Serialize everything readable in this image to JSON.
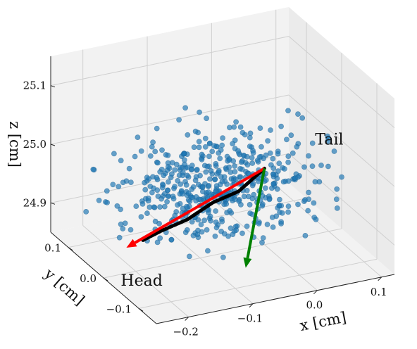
{
  "chart_data": {
    "type": "scatter",
    "projection": "3d",
    "grid": true,
    "axes": {
      "x": {
        "label": "x [cm]",
        "ticks": [
          {
            "v": -0.2,
            "label": "−0.2"
          },
          {
            "v": -0.1,
            "label": "−0.1"
          },
          {
            "v": 0.0,
            "label": "0.0"
          },
          {
            "v": 0.1,
            "label": "0.1"
          }
        ],
        "range": [
          -0.25,
          0.12
        ]
      },
      "y": {
        "label": "y [cm]",
        "ticks": [
          {
            "v": 0.1,
            "label": "0.1"
          },
          {
            "v": 0.0,
            "label": "0.0"
          },
          {
            "v": -0.1,
            "label": "−0.1"
          }
        ],
        "range": [
          -0.15,
          0.15
        ]
      },
      "z": {
        "label": "z [cm]",
        "ticks": [
          {
            "v": 25.1,
            "label": "25.1"
          },
          {
            "v": 25.0,
            "label": "25.0"
          },
          {
            "v": 24.9,
            "label": "24.9"
          }
        ],
        "range": [
          24.85,
          25.15
        ]
      }
    },
    "annotations": [
      {
        "text": "Head",
        "near": "red arrow tip"
      },
      {
        "text": "Tail",
        "near": "arrow origin"
      }
    ],
    "series": [
      {
        "marker": "circle",
        "color": "#1f77b4",
        "approx_count": 520,
        "center": [
          -0.07,
          0.0,
          24.97
        ],
        "spread": [
          0.07,
          0.05,
          0.035
        ]
      },
      {
        "kind": "path",
        "color": "#000000",
        "points": [
          [
            0.0,
            0.0,
            24.98
          ],
          [
            -0.04,
            0.0,
            24.95
          ],
          [
            -0.08,
            0.0,
            24.94
          ],
          [
            -0.12,
            0.0,
            24.92
          ],
          [
            -0.16,
            0.0,
            24.91
          ],
          [
            -0.19,
            0.0,
            24.9
          ]
        ]
      }
    ],
    "arrows": [
      {
        "color": "#ff0000",
        "from": [
          0.0,
          0.0,
          24.98
        ],
        "to": [
          -0.22,
          -0.01,
          24.9
        ]
      },
      {
        "color": "#008000",
        "from": [
          0.0,
          0.0,
          24.98
        ],
        "to": [
          -0.04,
          -0.02,
          24.83
        ]
      }
    ]
  }
}
